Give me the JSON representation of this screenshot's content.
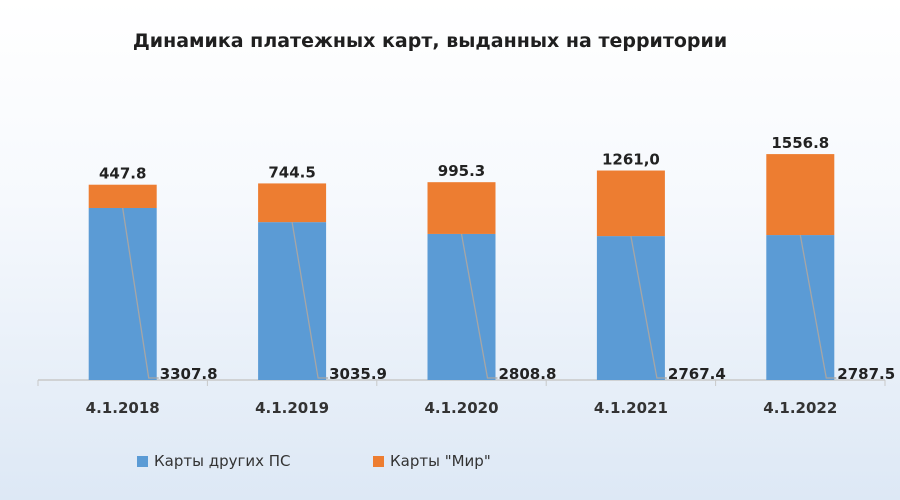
{
  "chart_data": {
    "type": "bar",
    "stacked": true,
    "title": "Динамика платежных карт, выданных на территории",
    "subtitle": "",
    "categories": [
      "4.1.2018",
      "4.1.2019",
      "4.1.2020",
      "4.1.2021",
      "4.1.2022"
    ],
    "series": [
      {
        "name": "Карты других ПС",
        "color": "#5b9bd5",
        "values": [
          3307.8,
          3035.9,
          2808.8,
          2767.4,
          2787.5
        ],
        "labels": [
          "3307.8",
          "3035.9",
          "2808.8",
          "2767.4",
          "2787.5"
        ]
      },
      {
        "name": "Карты \"Мир\"",
        "color": "#ed7d31",
        "values": [
          447.8,
          744.5,
          995.3,
          1261.0,
          1556.8
        ],
        "labels": [
          "447.8",
          "744.5",
          "995.3",
          "1261,0",
          "1556.8"
        ]
      }
    ],
    "ylim": [
      0,
      5000
    ],
    "grid": false,
    "legend_position": "bottom"
  }
}
